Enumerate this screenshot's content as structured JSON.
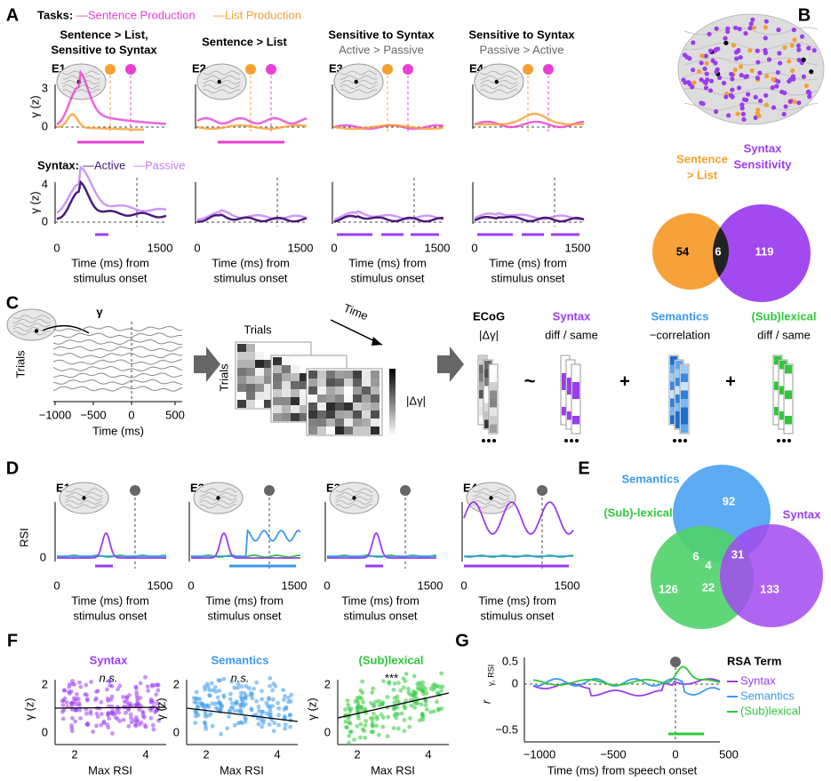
{
  "figure": {
    "A": {
      "label": "A",
      "tasks": "Tasks:",
      "sentence": "—Sentence Production",
      "list": "—List Production",
      "columns": [
        {
          "title": [
            "Sentence > List,",
            "Sensitive to Syntax"
          ],
          "electrode": "E1"
        },
        {
          "title": [
            "Sentence > List"
          ],
          "electrode": "E2"
        },
        {
          "title": [
            "Sensitive to Syntax",
            "Active > Passive"
          ],
          "electrode": "E3"
        },
        {
          "title": [
            "Sensitive to Syntax",
            "Passive > Active"
          ],
          "electrode": "E4"
        }
      ],
      "ylabel": "γ (z)",
      "top_yticks": [
        0,
        3
      ],
      "syntax": "Syntax:",
      "active": "—Active",
      "passive": "—Passive",
      "bottom_yticks": [
        0,
        4
      ],
      "xticks": [
        0,
        1500
      ],
      "xlabel": [
        "Time (ms) from",
        "stimulus onset"
      ]
    },
    "B": {
      "label": "B",
      "left_set": [
        "Sentence",
        "> List"
      ],
      "right_set": [
        "Syntax",
        "Sensitivity"
      ],
      "counts": {
        "left_only": 54,
        "both": 6,
        "right_only": 119
      }
    },
    "C": {
      "label": "C",
      "gamma": "γ",
      "trials": "Trials",
      "xticks": [
        "−1000",
        "−500",
        "0",
        "500"
      ],
      "xlabel": "Time (ms)",
      "matrix_trials": "Trials",
      "matrix_trials_side": "Trials",
      "time": "Time",
      "colorbar": "|Δγ|",
      "terms": [
        {
          "name": "ECoG",
          "desc": "|Δγ|"
        },
        {
          "name": "Syntax",
          "desc": "diff / same"
        },
        {
          "name": "Semantics",
          "desc": "−correlation"
        },
        {
          "name": "(Sub)lexical",
          "desc": "diff / same"
        }
      ],
      "tilde": "~",
      "plus": "+"
    },
    "D": {
      "label": "D",
      "electrodes": [
        "E1",
        "E2",
        "E3",
        "E4"
      ],
      "ylabel": "RSI",
      "ytick": 0,
      "xticks": [
        0,
        1500
      ],
      "xlabel": [
        "Time (ms) from",
        "stimulus onset"
      ]
    },
    "E": {
      "label": "E",
      "sets": [
        "Semantics",
        "(Sub)-lexical",
        "Syntax"
      ],
      "counts": {
        "semantics": 92,
        "sub_sem": 6,
        "all": 4,
        "sem_syn": 31,
        "sub": 126,
        "sub_syn": 22,
        "syntax": 133
      }
    },
    "F": {
      "label": "F",
      "plots": [
        {
          "title": "Syntax",
          "sig": "n.s."
        },
        {
          "title": "Semantics",
          "sig": "n.s."
        },
        {
          "title": "(Sub)lexical",
          "sig": "***"
        }
      ],
      "ylabel": "γ (z)",
      "yticks": [
        0,
        2
      ],
      "xticks": [
        2,
        4
      ],
      "xlabel": "Max RSI"
    },
    "G": {
      "label": "G",
      "ylabel": "r",
      "ylabel_sub": "γ, RSI",
      "yticks": [
        "0.5",
        "0",
        "−0.5"
      ],
      "xticks": [
        "−1000",
        "−500",
        "0",
        "500"
      ],
      "xlabel": "Time (ms) from speech onset",
      "legend_title": "RSA Term",
      "legend": [
        "Syntax",
        "Semantics",
        "(Sub)lexical"
      ]
    }
  }
}
